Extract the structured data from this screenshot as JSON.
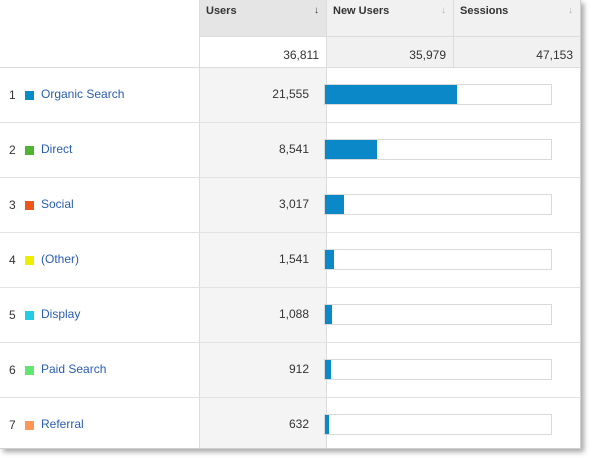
{
  "header": {
    "users_label": "Users",
    "users_sort_icon": "↓",
    "new_users_label": "New Users",
    "new_users_sort_icon": "↓",
    "sessions_label": "Sessions",
    "sessions_sort_icon": "↓"
  },
  "totals": {
    "users": "36,811",
    "new_users": "35,979",
    "sessions": "47,153"
  },
  "bar_color": "#0a88c8",
  "bar_scale_max": 36811,
  "rows": [
    {
      "num": "1",
      "label": "Organic Search",
      "users": "21,555",
      "value": 21555,
      "color": "#058dc7"
    },
    {
      "num": "2",
      "label": "Direct",
      "users": "8,541",
      "value": 8541,
      "color": "#50b432"
    },
    {
      "num": "3",
      "label": "Social",
      "users": "3,017",
      "value": 3017,
      "color": "#ed561b"
    },
    {
      "num": "4",
      "label": "(Other)",
      "users": "1,541",
      "value": 1541,
      "color": "#edef00"
    },
    {
      "num": "5",
      "label": "Display",
      "users": "1,088",
      "value": 1088,
      "color": "#24cbe5"
    },
    {
      "num": "6",
      "label": "Paid Search",
      "users": "912",
      "value": 912,
      "color": "#64e572"
    },
    {
      "num": "7",
      "label": "Referral",
      "users": "632",
      "value": 632,
      "color": "#ff9655"
    }
  ]
}
